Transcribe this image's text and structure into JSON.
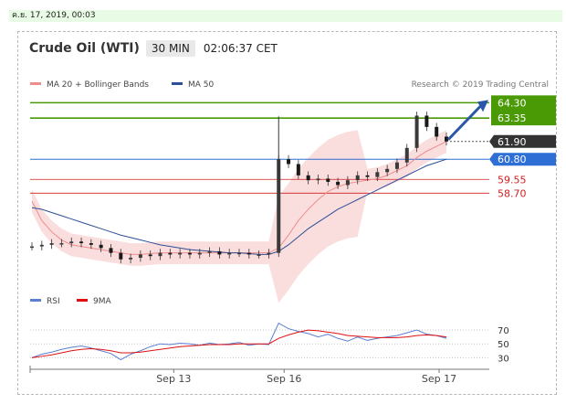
{
  "date_stamp": "ค.ย. 17, 2019, 00:03",
  "header": {
    "instrument": "Crude Oil (WTI)",
    "timeframe": "30 MIN",
    "clock": "02:06:37 CET"
  },
  "chart_data": {
    "type": "line",
    "legend": [
      {
        "name": "MA 20 + Bollinger Bands",
        "color": "#ee8d8d"
      },
      {
        "name": "MA 50",
        "color": "#2d4f97"
      }
    ],
    "credit": "Research © 2019 Trading Central",
    "x_ticks": [
      "Sep 13",
      "Sep 16",
      "Sep 17"
    ],
    "resistance_levels": [
      64.3,
      63.35
    ],
    "current_price": 61.9,
    "pivot_level": 60.8,
    "support_levels": [
      59.55,
      58.7
    ],
    "price_labels": [
      "64.30",
      "63.35",
      "61.90",
      "60.80",
      "59.55",
      "58.70"
    ],
    "colors": {
      "resistance": "#4a9a06",
      "pivot": "#2e6fd6",
      "current": "#333333",
      "support": "#d21f1f"
    },
    "ylim": [
      53.0,
      65.0
    ],
    "price_series": [
      55.4,
      55.5,
      55.6,
      55.6,
      55.7,
      55.6,
      55.5,
      55.3,
      55.0,
      54.6,
      54.7,
      54.9,
      54.8,
      55.0,
      54.9,
      55.0,
      54.9,
      55.0,
      55.1,
      54.9,
      55.0,
      55.0,
      54.9,
      54.9,
      55.0,
      60.8,
      60.5,
      59.8,
      59.5,
      59.6,
      59.4,
      59.2,
      59.5,
      59.8,
      59.7,
      60.0,
      60.2,
      60.6,
      61.5,
      63.5,
      62.8,
      62.2,
      61.9
    ],
    "ma20": [
      58.2,
      57.0,
      56.3,
      55.8,
      55.5,
      55.4,
      55.3,
      55.2,
      55.1,
      55.0,
      54.9,
      54.9,
      54.95,
      55.0,
      55.0,
      55.0,
      55.0,
      55.0,
      55.0,
      55.0,
      55.0,
      55.0,
      55.0,
      55.0,
      55.0,
      55.3,
      56.1,
      57.0,
      57.7,
      58.3,
      58.8,
      59.1,
      59.3,
      59.4,
      59.5,
      59.6,
      59.8,
      60.1,
      60.4,
      60.9,
      61.3,
      61.6,
      61.9
    ],
    "ma50": [
      57.8,
      57.7,
      57.5,
      57.3,
      57.1,
      56.9,
      56.7,
      56.5,
      56.3,
      56.1,
      55.95,
      55.8,
      55.65,
      55.5,
      55.4,
      55.3,
      55.2,
      55.15,
      55.1,
      55.05,
      55.0,
      55.0,
      54.95,
      54.9,
      54.9,
      55.1,
      55.5,
      56.0,
      56.5,
      56.9,
      57.3,
      57.7,
      58.0,
      58.3,
      58.6,
      58.9,
      59.2,
      59.5,
      59.8,
      60.1,
      60.4,
      60.6,
      60.8
    ],
    "rsi": {
      "legend": [
        {
          "name": "RSI",
          "color": "#5b7fd1"
        },
        {
          "name": "9MA",
          "color": "#e01010"
        }
      ],
      "ylim": [
        0,
        100
      ],
      "levels": [
        70,
        50,
        30
      ],
      "level_labels": [
        "70",
        "50",
        "30"
      ],
      "values": [
        30,
        35,
        38,
        42,
        45,
        47,
        44,
        40,
        36,
        27,
        35,
        40,
        46,
        50,
        49,
        51,
        50,
        48,
        51,
        49,
        50,
        52,
        48,
        50,
        49,
        80,
        72,
        68,
        65,
        60,
        64,
        58,
        54,
        60,
        55,
        58,
        60,
        62,
        66,
        70,
        64,
        62,
        58
      ],
      "ma9": [
        30,
        32,
        34,
        37,
        40,
        42,
        43,
        42,
        40,
        37,
        37,
        38,
        40,
        42,
        44,
        46,
        47,
        48,
        49,
        49,
        49,
        50,
        50,
        50,
        50,
        58,
        63,
        67,
        70,
        69,
        67,
        65,
        62,
        61,
        60,
        59,
        59,
        59,
        60,
        62,
        63,
        62,
        60
      ]
    }
  }
}
